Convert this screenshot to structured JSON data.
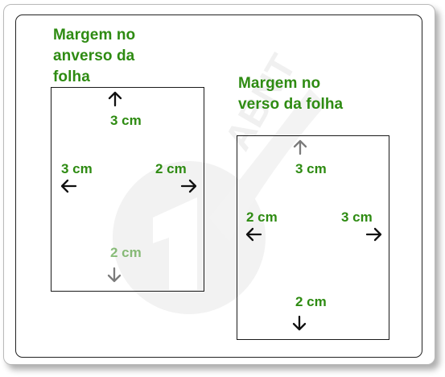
{
  "front": {
    "title": "Margem no\nanverso da\nfolha",
    "top": "3 cm",
    "left": "3 cm",
    "right": "2 cm",
    "bottom": "2 cm"
  },
  "back": {
    "title": "Margem no\nverso da folha",
    "top": "3 cm",
    "left": "2 cm",
    "right": "3 cm",
    "bottom": "2 cm"
  },
  "watermark": {
    "text": "Normas ABNT"
  },
  "colors": {
    "accent": "#2e8b12",
    "border": "#1a1a1a"
  }
}
